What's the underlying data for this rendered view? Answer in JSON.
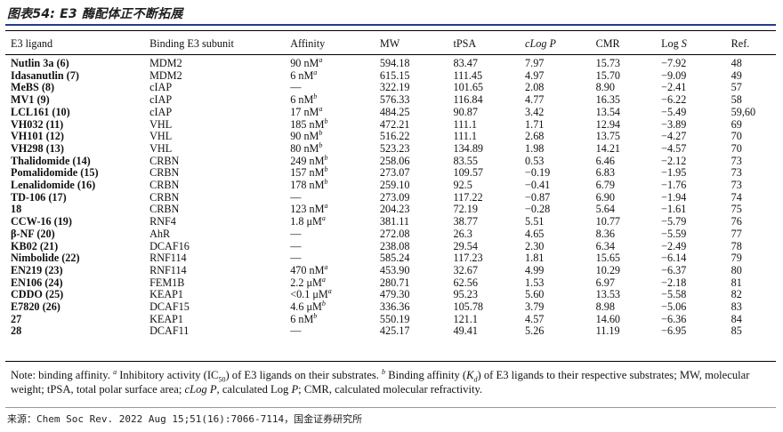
{
  "figure_title": "图表54: E3 酶配体正不断拓展",
  "table": {
    "headers": {
      "ligand": "E3 ligand",
      "subunit": "Binding E3 subunit",
      "affinity": "Affinity",
      "mw": "MW",
      "tpsa": "tPSA",
      "clogp_prefix": "cLog",
      "clogp_var": "P",
      "cmr": "CMR",
      "logs_prefix": "Log",
      "logs_var": "S",
      "ref": "Ref."
    },
    "rows": [
      {
        "ligand": "Nutlin 3a",
        "num": "(6)",
        "subunit": "MDM2",
        "aff": "90 nM",
        "aff_sup": "a",
        "mw": "594.18",
        "tpsa": "83.47",
        "clogp": "7.97",
        "cmr": "15.73",
        "logs": "−7.92",
        "ref": "48"
      },
      {
        "ligand": "Idasanutlin",
        "num": "(7)",
        "subunit": "MDM2",
        "aff": "6 nM",
        "aff_sup": "a",
        "mw": "615.15",
        "tpsa": "111.45",
        "clogp": "4.97",
        "cmr": "15.70",
        "logs": "−9.09",
        "ref": "49"
      },
      {
        "ligand": "MeBS",
        "num": "(8)",
        "subunit": "cIAP",
        "aff": "—",
        "aff_sup": "",
        "mw": "322.19",
        "tpsa": "101.65",
        "clogp": "2.08",
        "cmr": "8.90",
        "logs": "−2.41",
        "ref": "57"
      },
      {
        "ligand": "MV1",
        "num": "(9)",
        "subunit": "cIAP",
        "aff": "6 nM",
        "aff_sup": "b",
        "mw": "576.33",
        "tpsa": "116.84",
        "clogp": "4.77",
        "cmr": "16.35",
        "logs": "−6.22",
        "ref": "58"
      },
      {
        "ligand": "LCL161",
        "num": "(10)",
        "subunit": "cIAP",
        "aff": "17 nM",
        "aff_sup": "a",
        "mw": "484.25",
        "tpsa": "90.87",
        "clogp": "3.42",
        "cmr": "13.54",
        "logs": "−5.49",
        "ref": "59,60"
      },
      {
        "ligand": "VH032",
        "num": "(11)",
        "subunit": "VHL",
        "aff": "185 nM",
        "aff_sup": "b",
        "mw": "472.21",
        "tpsa": "111.1",
        "clogp": "1.71",
        "cmr": "12.94",
        "logs": "−3.89",
        "ref": "69"
      },
      {
        "ligand": "VH101",
        "num": "(12)",
        "subunit": "VHL",
        "aff": "90 nM",
        "aff_sup": "b",
        "mw": "516.22",
        "tpsa": "111.1",
        "clogp": "2.68",
        "cmr": "13.75",
        "logs": "−4.27",
        "ref": "70"
      },
      {
        "ligand": "VH298",
        "num": "(13)",
        "subunit": "VHL",
        "aff": "80 nM",
        "aff_sup": "b",
        "mw": "523.23",
        "tpsa": "134.89",
        "clogp": "1.98",
        "cmr": "14.21",
        "logs": "−4.57",
        "ref": "70"
      },
      {
        "ligand": "Thalidomide",
        "num": "(14)",
        "subunit": "CRBN",
        "aff": "249 nM",
        "aff_sup": "b",
        "mw": "258.06",
        "tpsa": "83.55",
        "clogp": "0.53",
        "cmr": "6.46",
        "logs": "−2.12",
        "ref": "73"
      },
      {
        "ligand": "Pomalidomide",
        "num": "(15)",
        "subunit": "CRBN",
        "aff": "157 nM",
        "aff_sup": "b",
        "mw": "273.07",
        "tpsa": "109.57",
        "clogp": "−0.19",
        "cmr": "6.83",
        "logs": "−1.95",
        "ref": "73"
      },
      {
        "ligand": "Lenalidomide",
        "num": "(16)",
        "subunit": "CRBN",
        "aff": "178 nM",
        "aff_sup": "b",
        "mw": "259.10",
        "tpsa": "92.5",
        "clogp": "−0.41",
        "cmr": "6.79",
        "logs": "−1.76",
        "ref": "73"
      },
      {
        "ligand": "TD-106",
        "num": "(17)",
        "subunit": "CRBN",
        "aff": "—",
        "aff_sup": "",
        "mw": "273.09",
        "tpsa": "117.22",
        "clogp": "−0.87",
        "cmr": "6.90",
        "logs": "−1.94",
        "ref": "74"
      },
      {
        "ligand": "18",
        "num": "",
        "subunit": "CRBN",
        "aff": "123 nM",
        "aff_sup": "a",
        "mw": "204.23",
        "tpsa": "72.19",
        "clogp": "−0.28",
        "cmr": "5.64",
        "logs": "−1.61",
        "ref": "75"
      },
      {
        "ligand": "CCW-16",
        "num": "(19)",
        "subunit": "RNF4",
        "aff": "1.8 μM",
        "aff_sup": "a",
        "mw": "381.11",
        "tpsa": "38.77",
        "clogp": "5.51",
        "cmr": "10.77",
        "logs": "−5.79",
        "ref": "76"
      },
      {
        "ligand": "β-NF",
        "num": "(20)",
        "subunit": "AhR",
        "aff": "—",
        "aff_sup": "",
        "mw": "272.08",
        "tpsa": "26.3",
        "clogp": "4.65",
        "cmr": "8.36",
        "logs": "−5.59",
        "ref": "77"
      },
      {
        "ligand": "KB02",
        "num": "(21)",
        "subunit": "DCAF16",
        "aff": "—",
        "aff_sup": "",
        "mw": "238.08",
        "tpsa": "29.54",
        "clogp": "2.30",
        "cmr": "6.34",
        "logs": "−2.49",
        "ref": "78"
      },
      {
        "ligand": "Nimbolide",
        "num": "(22)",
        "subunit": "RNF114",
        "aff": "—",
        "aff_sup": "",
        "mw": "585.24",
        "tpsa": "117.23",
        "clogp": "1.81",
        "cmr": "15.65",
        "logs": "−6.14",
        "ref": "79"
      },
      {
        "ligand": "EN219",
        "num": "(23)",
        "subunit": "RNF114",
        "aff": "470 nM",
        "aff_sup": "a",
        "mw": "453.90",
        "tpsa": "32.67",
        "clogp": "4.99",
        "cmr": "10.29",
        "logs": "−6.37",
        "ref": "80"
      },
      {
        "ligand": "EN106",
        "num": "(24)",
        "subunit": "FEM1B",
        "aff": "2.2 μM",
        "aff_sup": "a",
        "mw": "280.71",
        "tpsa": "62.56",
        "clogp": "1.53",
        "cmr": "6.97",
        "logs": "−2.18",
        "ref": "81"
      },
      {
        "ligand": "CDDO",
        "num": "(25)",
        "subunit": "KEAP1",
        "aff": "<0.1 μM",
        "aff_sup": "a",
        "mw": "479.30",
        "tpsa": "95.23",
        "clogp": "5.60",
        "cmr": "13.53",
        "logs": "−5.58",
        "ref": "82"
      },
      {
        "ligand": "E7820",
        "num": "(26)",
        "subunit": "DCAF15",
        "aff": "4.6 μM",
        "aff_sup": "b",
        "mw": "336.36",
        "tpsa": "105.78",
        "clogp": "3.79",
        "cmr": "8.98",
        "logs": "−5.06",
        "ref": "83"
      },
      {
        "ligand": "27",
        "num": "",
        "subunit": "KEAP1",
        "aff": "6 nM",
        "aff_sup": "b",
        "mw": "550.19",
        "tpsa": "121.1",
        "clogp": "4.57",
        "cmr": "14.60",
        "logs": "−6.36",
        "ref": "84"
      },
      {
        "ligand": "28",
        "num": "",
        "subunit": "DCAF11",
        "aff": "—",
        "aff_sup": "",
        "mw": "425.17",
        "tpsa": "49.41",
        "clogp": "5.26",
        "cmr": "11.19",
        "logs": "−6.95",
        "ref": "85"
      }
    ]
  },
  "note": {
    "p1": "Note: binding affinity. ",
    "sup_a": "a",
    "p2": " Inhibitory activity (IC",
    "sub_50": "50",
    "p3": ") of E3 ligands on their substrates. ",
    "sup_b": "b",
    "p4": " Binding affinity (",
    "k_var": "K",
    "k_sub": "d",
    "p5": ") of E3 ligands to their respective substrates; MW, molecular weight; tPSA, total polar surface area; ",
    "clogp1": "cLog ",
    "p_var1": "P",
    "p6": ", calculated Log ",
    "p_var2": "P",
    "p7": "; CMR, calculated molecular refractivity."
  },
  "source": "来源：Chem Soc Rev. 2022 Aug 15;51(16):7066-7114，国金证券研究所",
  "colors": {
    "title_rule": "#1f3d8c",
    "text": "#111111"
  }
}
